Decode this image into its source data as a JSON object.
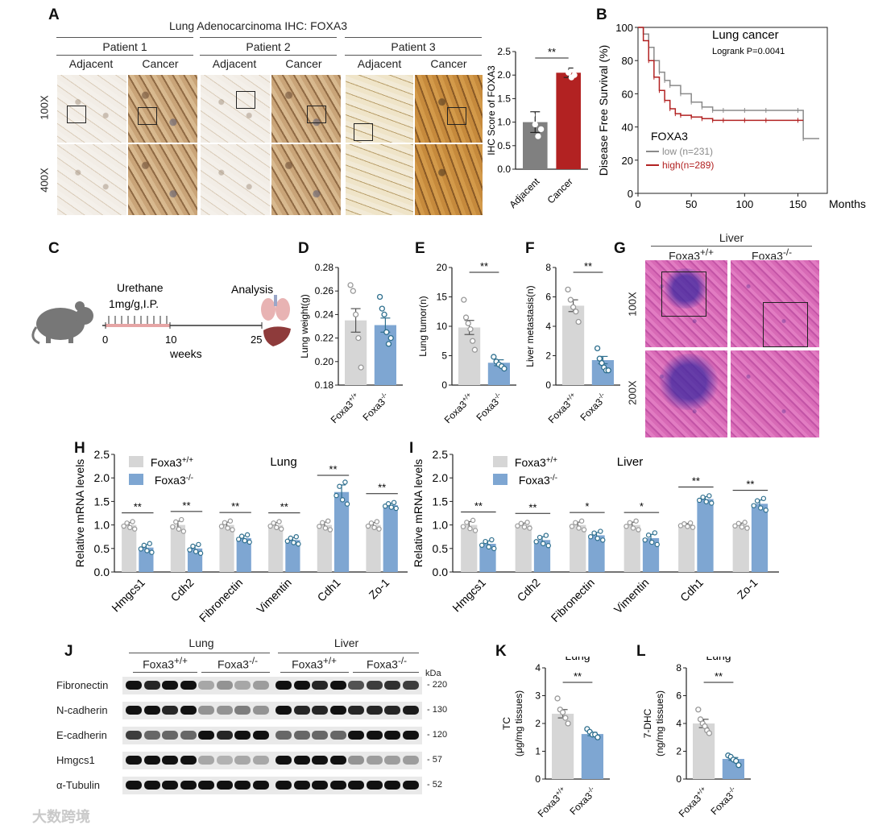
{
  "panels": {
    "A": "A",
    "B": "B",
    "C": "C",
    "D": "D",
    "E": "E",
    "F": "F",
    "G": "G",
    "H": "H",
    "I": "I",
    "J": "J",
    "K": "K",
    "L": "L"
  },
  "panelA": {
    "title": "Lung Adenocarcinoma   IHC:  FOXA3",
    "patients": [
      "Patient 1",
      "Patient 2",
      "Patient 3"
    ],
    "columns": [
      "Adjacent",
      "Cancer"
    ],
    "rows": [
      "100X",
      "400X"
    ]
  },
  "panelC": {
    "treatment_line1": "Urethane",
    "treatment_line2": "1mg/g,I.P.",
    "analysis": "Analysis",
    "ticks": [
      "0",
      "10",
      "25"
    ],
    "xlabel": "weeks"
  },
  "panelG": {
    "title": "Liver",
    "columns": [
      "Foxa3+/+",
      "Foxa3-/-"
    ],
    "rows": [
      "100X",
      "200X"
    ]
  },
  "panelJ": {
    "tissues": [
      "Lung",
      "Liver"
    ],
    "genotypes": [
      "Foxa3+/+",
      "Foxa3-/-",
      "Foxa3+/+",
      "Foxa3-/-"
    ],
    "kda_header": "kDa",
    "proteins": [
      {
        "name": "Fibronectin",
        "kda": "- 220"
      },
      {
        "name": "N-cadherin",
        "kda": "- 130"
      },
      {
        "name": "E-cadherin",
        "kda": "- 120"
      },
      {
        "name": "Hmgcs1",
        "kda": "- 57"
      },
      {
        "name": "α-Tubulin",
        "kda": "- 52"
      }
    ]
  },
  "watermark": "大数跨境",
  "colors": {
    "wt": "#d6d6d6",
    "ko": "#7ea6d2",
    "cancer": "#b22222",
    "adjacent": "#808080",
    "dots_ko": "#2e6f8e"
  },
  "chart_data": [
    {
      "id": "A",
      "type": "bar",
      "categories": [
        "Adjacent",
        "Cancer"
      ],
      "values": [
        1.0,
        2.05
      ],
      "errors": [
        0.22,
        0.1
      ],
      "points": [
        [
          1.3,
          1.15,
          0.95,
          0.7,
          0.85
        ],
        [
          2.25,
          2.15,
          2.05,
          1.95,
          2.0
        ]
      ],
      "ylabel": "IHC Score of FOXA3",
      "ylim": [
        0,
        2.5
      ],
      "yticks": [
        "0.0",
        "0.5",
        "1.0",
        "1.5",
        "2.0",
        "2.5"
      ],
      "significance": "**"
    },
    {
      "id": "B",
      "type": "line",
      "title": "Lung cancer",
      "subtitle": "Logrank P=0.0041",
      "xlabel": "Months",
      "ylabel": "Disease Free Survival (%)",
      "xlim": [
        0,
        170
      ],
      "ylim": [
        0,
        100
      ],
      "xticks": [
        "0",
        "50",
        "100",
        "150"
      ],
      "yticks": [
        "0",
        "20",
        "40",
        "60",
        "80",
        "100"
      ],
      "legend_title": "FOXA3",
      "series": [
        {
          "name": "low (n=231)",
          "x": [
            0,
            5,
            10,
            15,
            20,
            25,
            30,
            40,
            50,
            60,
            70,
            80,
            100,
            120,
            150,
            155,
            170
          ],
          "y": [
            100,
            96,
            88,
            80,
            73,
            68,
            65,
            60,
            55,
            52,
            50,
            50,
            50,
            50,
            50,
            33,
            33
          ]
        },
        {
          "name": "high(n=289)",
          "x": [
            0,
            5,
            10,
            15,
            20,
            25,
            30,
            35,
            40,
            50,
            60,
            70,
            80,
            100,
            120,
            150,
            155
          ],
          "y": [
            100,
            92,
            80,
            70,
            62,
            56,
            51,
            48,
            47,
            46,
            45,
            44,
            44,
            44,
            44,
            44,
            44
          ]
        }
      ]
    },
    {
      "id": "D",
      "type": "bar",
      "categories": [
        "Foxa3+/+",
        "Foxa3-/-"
      ],
      "values": [
        0.235,
        0.231
      ],
      "errors": [
        0.01,
        0.006
      ],
      "points": [
        [
          0.265,
          0.26,
          0.24,
          0.22,
          0.195
        ],
        [
          0.255,
          0.245,
          0.24,
          0.225,
          0.215,
          0.22
        ]
      ],
      "ylabel": "Lung weight(g)",
      "ylim": [
        0.18,
        0.28
      ],
      "yticks": [
        "0.18",
        "0.20",
        "0.22",
        "0.24",
        "0.26",
        "0.28"
      ],
      "significance": ""
    },
    {
      "id": "E",
      "type": "bar",
      "categories": [
        "Foxa3+/+",
        "Foxa3-/-"
      ],
      "values": [
        9.8,
        3.8
      ],
      "errors": [
        1.2,
        0.5
      ],
      "points": [
        [
          14.5,
          11.5,
          10.5,
          9.5,
          7.5,
          6.0
        ],
        [
          4.8,
          4.0,
          3.5,
          3.2,
          2.8
        ]
      ],
      "ylabel": "Lung tumor(n)",
      "ylim": [
        0,
        20
      ],
      "yticks": [
        "0",
        "5",
        "10",
        "15",
        "20"
      ],
      "significance": "**"
    },
    {
      "id": "F",
      "type": "bar",
      "categories": [
        "Foxa3+/+",
        "Foxa3-/-"
      ],
      "values": [
        5.4,
        1.7
      ],
      "errors": [
        0.4,
        0.25
      ],
      "points": [
        [
          6.5,
          5.8,
          5.3,
          5.0,
          4.3
        ],
        [
          2.5,
          1.8,
          1.5,
          1.2,
          1.0,
          1.0
        ]
      ],
      "ylabel": "Liver metastasis(n)",
      "ylim": [
        0,
        8
      ],
      "yticks": [
        "0",
        "2",
        "4",
        "6",
        "8"
      ],
      "significance": "**"
    },
    {
      "id": "H",
      "type": "bar",
      "title": "Lung",
      "categories": [
        "Hmgcs1",
        "Cdh2",
        "Fibronectin",
        "Vimentin",
        "Cdh1",
        "Zo-1"
      ],
      "legend": [
        "Foxa3+/+",
        "Foxa3-/-"
      ],
      "series": [
        {
          "name": "Foxa3+/+",
          "values": [
            1.0,
            1.0,
            1.0,
            1.0,
            1.0,
            1.0
          ],
          "errors": [
            0.05,
            0.08,
            0.06,
            0.05,
            0.06,
            0.05
          ]
        },
        {
          "name": "Foxa3-/-",
          "values": [
            0.52,
            0.5,
            0.72,
            0.68,
            1.7,
            1.42
          ],
          "errors": [
            0.06,
            0.06,
            0.05,
            0.05,
            0.15,
            0.04
          ]
        }
      ],
      "ylabel": "Relative mRNA levels",
      "ylim": [
        0,
        2.5
      ],
      "yticks": [
        "0.0",
        "0.5",
        "1.0",
        "1.5",
        "2.0",
        "2.5"
      ],
      "significance": [
        "**",
        "**",
        "**",
        "**",
        "**",
        "**"
      ]
    },
    {
      "id": "I",
      "type": "bar",
      "title": "Liver",
      "categories": [
        "Hmgcs1",
        "Cdh2",
        "Fibronectin",
        "Vimentin",
        "Cdh1",
        "Zo-1"
      ],
      "legend": [
        "Foxa3+/+",
        "Foxa3-/-"
      ],
      "series": [
        {
          "name": "Foxa3+/+",
          "values": [
            1.0,
            1.0,
            1.0,
            1.0,
            1.0,
            1.0
          ],
          "errors": [
            0.07,
            0.04,
            0.06,
            0.06,
            0.03,
            0.04
          ]
        },
        {
          "name": "Foxa3-/-",
          "values": [
            0.6,
            0.68,
            0.78,
            0.72,
            1.55,
            1.45
          ],
          "errors": [
            0.06,
            0.07,
            0.06,
            0.08,
            0.05,
            0.08
          ]
        }
      ],
      "ylabel": "Relative mRNA levels",
      "ylim": [
        0,
        2.5
      ],
      "yticks": [
        "0.0",
        "0.5",
        "1.0",
        "1.5",
        "2.0",
        "2.5"
      ],
      "significance": [
        "**",
        "**",
        "*",
        "*",
        "**",
        "**"
      ]
    },
    {
      "id": "K",
      "type": "bar",
      "title": "Lung",
      "categories": [
        "Foxa3+/+",
        "Foxa3-/-"
      ],
      "values": [
        2.35,
        1.62
      ],
      "errors": [
        0.15,
        0.06
      ],
      "points": [
        [
          2.9,
          2.5,
          2.4,
          2.2,
          2.0
        ],
        [
          1.8,
          1.7,
          1.6,
          1.6,
          1.5
        ]
      ],
      "ylabel": "TC",
      "ylabel2": "(μg/mg tissues)",
      "ylim": [
        0,
        4
      ],
      "yticks": [
        "0",
        "1",
        "2",
        "3",
        "4"
      ],
      "significance": "**"
    },
    {
      "id": "L",
      "type": "bar",
      "title": "Lung",
      "categories": [
        "Foxa3+/+",
        "Foxa3-/-"
      ],
      "values": [
        4.0,
        1.45
      ],
      "errors": [
        0.3,
        0.1
      ],
      "points": [
        [
          5.0,
          4.3,
          4.0,
          3.8,
          3.5,
          3.3
        ],
        [
          1.7,
          1.6,
          1.4,
          1.3,
          1.0
        ]
      ],
      "ylabel": "7-DHC",
      "ylabel2": "(ng/mg tissues)",
      "ylim": [
        0,
        8
      ],
      "yticks": [
        "0",
        "2",
        "4",
        "6",
        "8"
      ],
      "significance": "**"
    }
  ]
}
